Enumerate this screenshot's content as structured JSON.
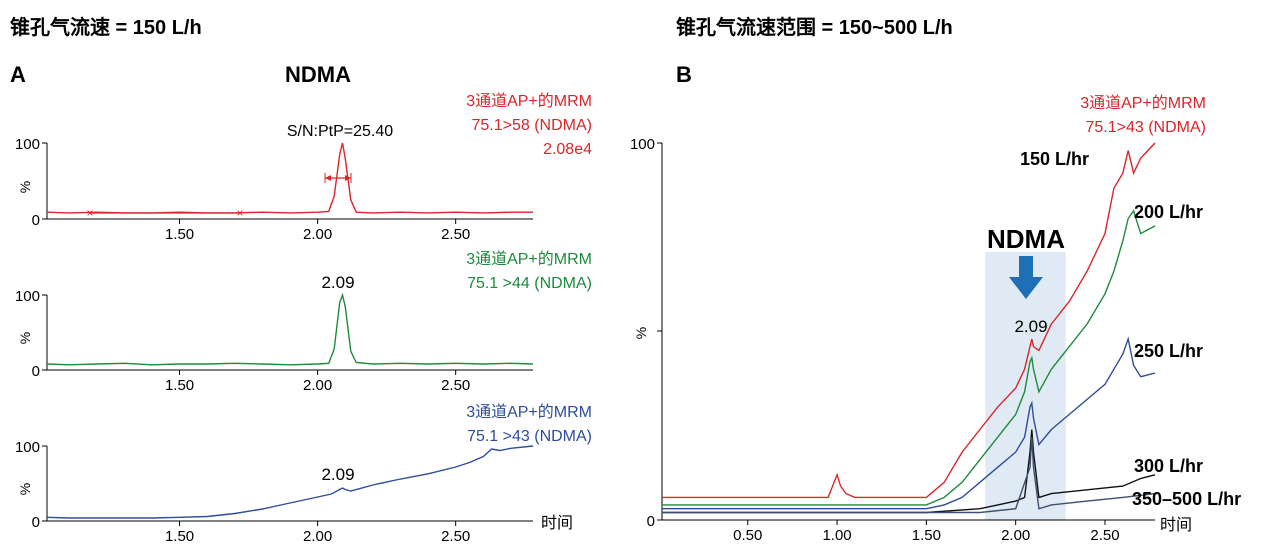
{
  "panelA": {
    "heading": "锥孔气流速 = 150 L/h",
    "letter": "A",
    "compound": "NDMA",
    "x_unit": "时间",
    "y_unit": "%",
    "xlim": [
      1.02,
      2.78
    ],
    "x_ticks": [
      "1.50",
      "2.00",
      "2.50"
    ],
    "y_tick_max": "100",
    "y_tick_min": "0",
    "traces": [
      {
        "label_lines": [
          "3通道AP+的MRM",
          "75.1>58 (NDMA)",
          "2.08e4"
        ],
        "color": "#d9262a",
        "annotation": "S/N:PtP=25.40",
        "noise_markers": [
          "1.20",
          "1.74"
        ],
        "peak_rt": 2.09,
        "x": [
          1.02,
          1.1,
          1.2,
          1.3,
          1.4,
          1.5,
          1.6,
          1.7,
          1.8,
          1.9,
          2.0,
          2.04,
          2.06,
          2.08,
          2.09,
          2.1,
          2.12,
          2.14,
          2.2,
          2.3,
          2.4,
          2.5,
          2.6,
          2.7,
          2.78
        ],
        "y": [
          9,
          8,
          9,
          8,
          8,
          9,
          8,
          8,
          9,
          8,
          9,
          10,
          30,
          85,
          100,
          80,
          25,
          9,
          8,
          9,
          8,
          9,
          8,
          9,
          9
        ]
      },
      {
        "label_lines": [
          "3通道AP+的MRM",
          "75.1 >44 (NDMA)"
        ],
        "color": "#1e8a3c",
        "annotation": "2.09",
        "peak_rt": 2.09,
        "x": [
          1.02,
          1.1,
          1.2,
          1.3,
          1.4,
          1.5,
          1.6,
          1.7,
          1.8,
          1.9,
          2.0,
          2.04,
          2.06,
          2.08,
          2.09,
          2.1,
          2.12,
          2.14,
          2.2,
          2.3,
          2.4,
          2.5,
          2.6,
          2.7,
          2.78
        ],
        "y": [
          8,
          7,
          8,
          9,
          7,
          8,
          8,
          9,
          8,
          7,
          8,
          9,
          28,
          90,
          100,
          85,
          25,
          10,
          8,
          9,
          8,
          9,
          8,
          9,
          8
        ]
      },
      {
        "label_lines": [
          "3通道AP+的MRM",
          "75.1 >43 (NDMA)"
        ],
        "color": "#2e4d9a",
        "annotation": "2.09",
        "peak_rt": 2.09,
        "x": [
          1.02,
          1.1,
          1.2,
          1.3,
          1.4,
          1.5,
          1.6,
          1.7,
          1.8,
          1.9,
          2.0,
          2.05,
          2.08,
          2.09,
          2.1,
          2.12,
          2.15,
          2.2,
          2.3,
          2.4,
          2.5,
          2.55,
          2.6,
          2.63,
          2.66,
          2.7,
          2.78
        ],
        "y": [
          5,
          4,
          4,
          4,
          4,
          5,
          6,
          10,
          16,
          24,
          32,
          36,
          42,
          44,
          42,
          40,
          43,
          48,
          56,
          63,
          72,
          78,
          86,
          96,
          94,
          97,
          100
        ]
      }
    ]
  },
  "panelB": {
    "heading": "锥孔气流速范围 = 150~500 L/h",
    "letter": "B",
    "compound": "NDMA",
    "trace_label_lines": [
      "3通道AP+的MRM",
      "75.1>43 (NDMA)"
    ],
    "peak_label": "2.09",
    "x_unit": "时间",
    "y_unit": "%",
    "xlim": [
      0.02,
      2.78
    ],
    "x_ticks": [
      "0.50",
      "1.00",
      "1.50",
      "2.00",
      "2.50"
    ],
    "y_ticks": [
      "0",
      "%",
      "100"
    ],
    "highlight_range": [
      1.83,
      2.28
    ],
    "series": [
      {
        "name": "150 L/hr",
        "color": "#d9262a",
        "x": [
          0.02,
          0.3,
          0.6,
          0.95,
          1.0,
          1.02,
          1.05,
          1.1,
          1.3,
          1.5,
          1.6,
          1.7,
          1.8,
          1.9,
          2.0,
          2.05,
          2.08,
          2.09,
          2.1,
          2.13,
          2.2,
          2.3,
          2.4,
          2.5,
          2.55,
          2.6,
          2.63,
          2.66,
          2.7,
          2.78
        ],
        "y": [
          6,
          6,
          6,
          6,
          12,
          9,
          7,
          6,
          6,
          6,
          10,
          18,
          24,
          30,
          35,
          40,
          46,
          48,
          46,
          45,
          52,
          58,
          66,
          76,
          88,
          92,
          98,
          92,
          96,
          100
        ]
      },
      {
        "name": "200 L/hr",
        "color": "#1e8a3c",
        "x": [
          0.02,
          0.3,
          0.6,
          1.0,
          1.3,
          1.5,
          1.6,
          1.7,
          1.8,
          1.9,
          2.0,
          2.05,
          2.08,
          2.09,
          2.1,
          2.13,
          2.2,
          2.3,
          2.4,
          2.5,
          2.55,
          2.6,
          2.63,
          2.66,
          2.7,
          2.78
        ],
        "y": [
          4,
          4,
          4,
          4,
          4,
          4,
          6,
          10,
          16,
          22,
          28,
          34,
          42,
          43,
          40,
          34,
          40,
          46,
          52,
          60,
          66,
          74,
          80,
          82,
          76,
          78
        ]
      },
      {
        "name": "250  L/hr",
        "color": "#2e4d9a",
        "x": [
          0.02,
          0.3,
          0.6,
          1.0,
          1.3,
          1.5,
          1.6,
          1.7,
          1.8,
          1.9,
          2.0,
          2.05,
          2.08,
          2.09,
          2.1,
          2.13,
          2.2,
          2.3,
          2.4,
          2.5,
          2.55,
          2.6,
          2.63,
          2.66,
          2.7,
          2.78
        ],
        "y": [
          3,
          3,
          3,
          3,
          3,
          3,
          4,
          6,
          10,
          14,
          18,
          22,
          30,
          31,
          27,
          20,
          24,
          28,
          32,
          36,
          40,
          44,
          48,
          41,
          38,
          39
        ]
      },
      {
        "name": "300 L/hr",
        "color": "#111111",
        "x": [
          0.02,
          0.5,
          1.0,
          1.5,
          1.8,
          1.9,
          2.0,
          2.05,
          2.08,
          2.09,
          2.1,
          2.13,
          2.2,
          2.4,
          2.6,
          2.7,
          2.78
        ],
        "y": [
          2,
          2,
          2,
          2,
          3,
          4,
          5,
          6,
          18,
          24,
          18,
          6,
          7,
          8,
          9,
          11,
          12
        ]
      },
      {
        "name": "350–500 L/hr",
        "color": "#3c4f6e",
        "x": [
          0.02,
          0.5,
          1.0,
          1.5,
          1.8,
          2.0,
          2.08,
          2.09,
          2.1,
          2.13,
          2.2,
          2.4,
          2.6,
          2.78
        ],
        "y": [
          2,
          2,
          2,
          2,
          2,
          3,
          14,
          22,
          14,
          3,
          4,
          5,
          6,
          7
        ]
      }
    ]
  }
}
